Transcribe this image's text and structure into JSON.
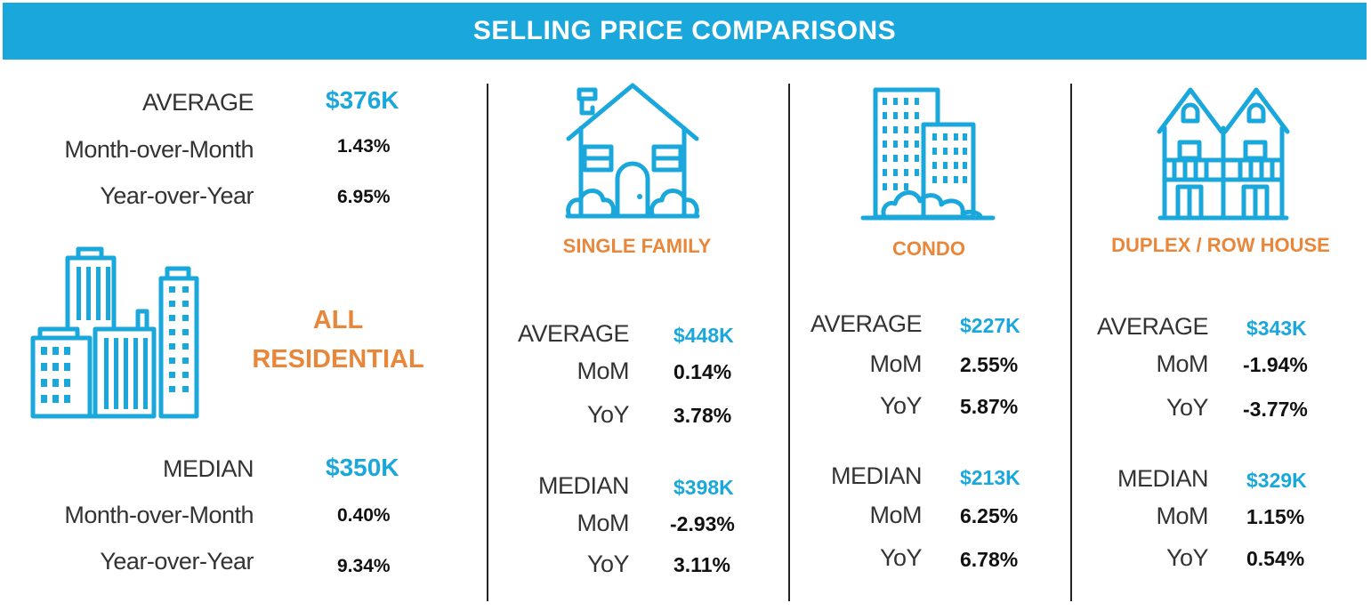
{
  "header": {
    "title": "SELLING PRICE COMPARISONS"
  },
  "colors": {
    "banner": "#1aa8dc",
    "accent_value": "#1aa8dc",
    "category": "#e8873a"
  },
  "all_residential": {
    "title_line1": "ALL",
    "title_line2": "RESIDENTIAL",
    "icon": "city-buildings-icon",
    "average": {
      "label": "AVERAGE",
      "value": "$376K",
      "mom_label": "Month-over-Month",
      "mom": "1.43%",
      "yoy_label": "Year-over-Year",
      "yoy": "6.95%"
    },
    "median": {
      "label": "MEDIAN",
      "value": "$350K",
      "mom_label": "Month-over-Month",
      "mom": "0.40%",
      "yoy_label": "Year-over-Year",
      "yoy": "9.34%"
    }
  },
  "categories": [
    {
      "name": "SINGLE FAMILY",
      "icon": "house-icon",
      "average": {
        "label": "AVERAGE",
        "value": "$448K",
        "mom_label": "MoM",
        "mom": "0.14%",
        "yoy_label": "YoY",
        "yoy": "3.78%"
      },
      "median": {
        "label": "MEDIAN",
        "value": "$398K",
        "mom_label": "MoM",
        "mom": "-2.93%",
        "yoy_label": "YoY",
        "yoy": "3.11%"
      }
    },
    {
      "name": "CONDO",
      "icon": "condo-building-icon",
      "average": {
        "label": "AVERAGE",
        "value": "$227K",
        "mom_label": "MoM",
        "mom": "2.55%",
        "yoy_label": "YoY",
        "yoy": "5.87%"
      },
      "median": {
        "label": "MEDIAN",
        "value": "$213K",
        "mom_label": "MoM",
        "mom": "6.25%",
        "yoy_label": "YoY",
        "yoy": "6.78%"
      }
    },
    {
      "name": "DUPLEX / ROW HOUSE",
      "icon": "duplex-house-icon",
      "average": {
        "label": "AVERAGE",
        "value": "$343K",
        "mom_label": "MoM",
        "mom": "-1.94%",
        "yoy_label": "YoY",
        "yoy": "-3.77%"
      },
      "median": {
        "label": "MEDIAN",
        "value": "$329K",
        "mom_label": "MoM",
        "mom": "1.15%",
        "yoy_label": "YoY",
        "yoy": "0.54%"
      }
    }
  ]
}
